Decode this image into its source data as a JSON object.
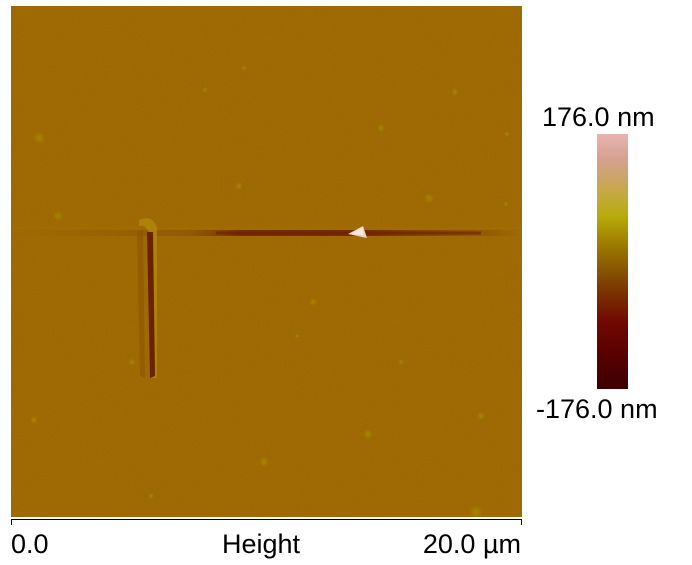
{
  "image": {
    "description_icon": "afm-height-map-icon"
  },
  "colorbar": {
    "max_label": "176.0 nm",
    "min_label": "-176.0 nm"
  },
  "axis": {
    "min_label": "0.0",
    "title": "Height",
    "max_label": "20.0 µm"
  }
}
